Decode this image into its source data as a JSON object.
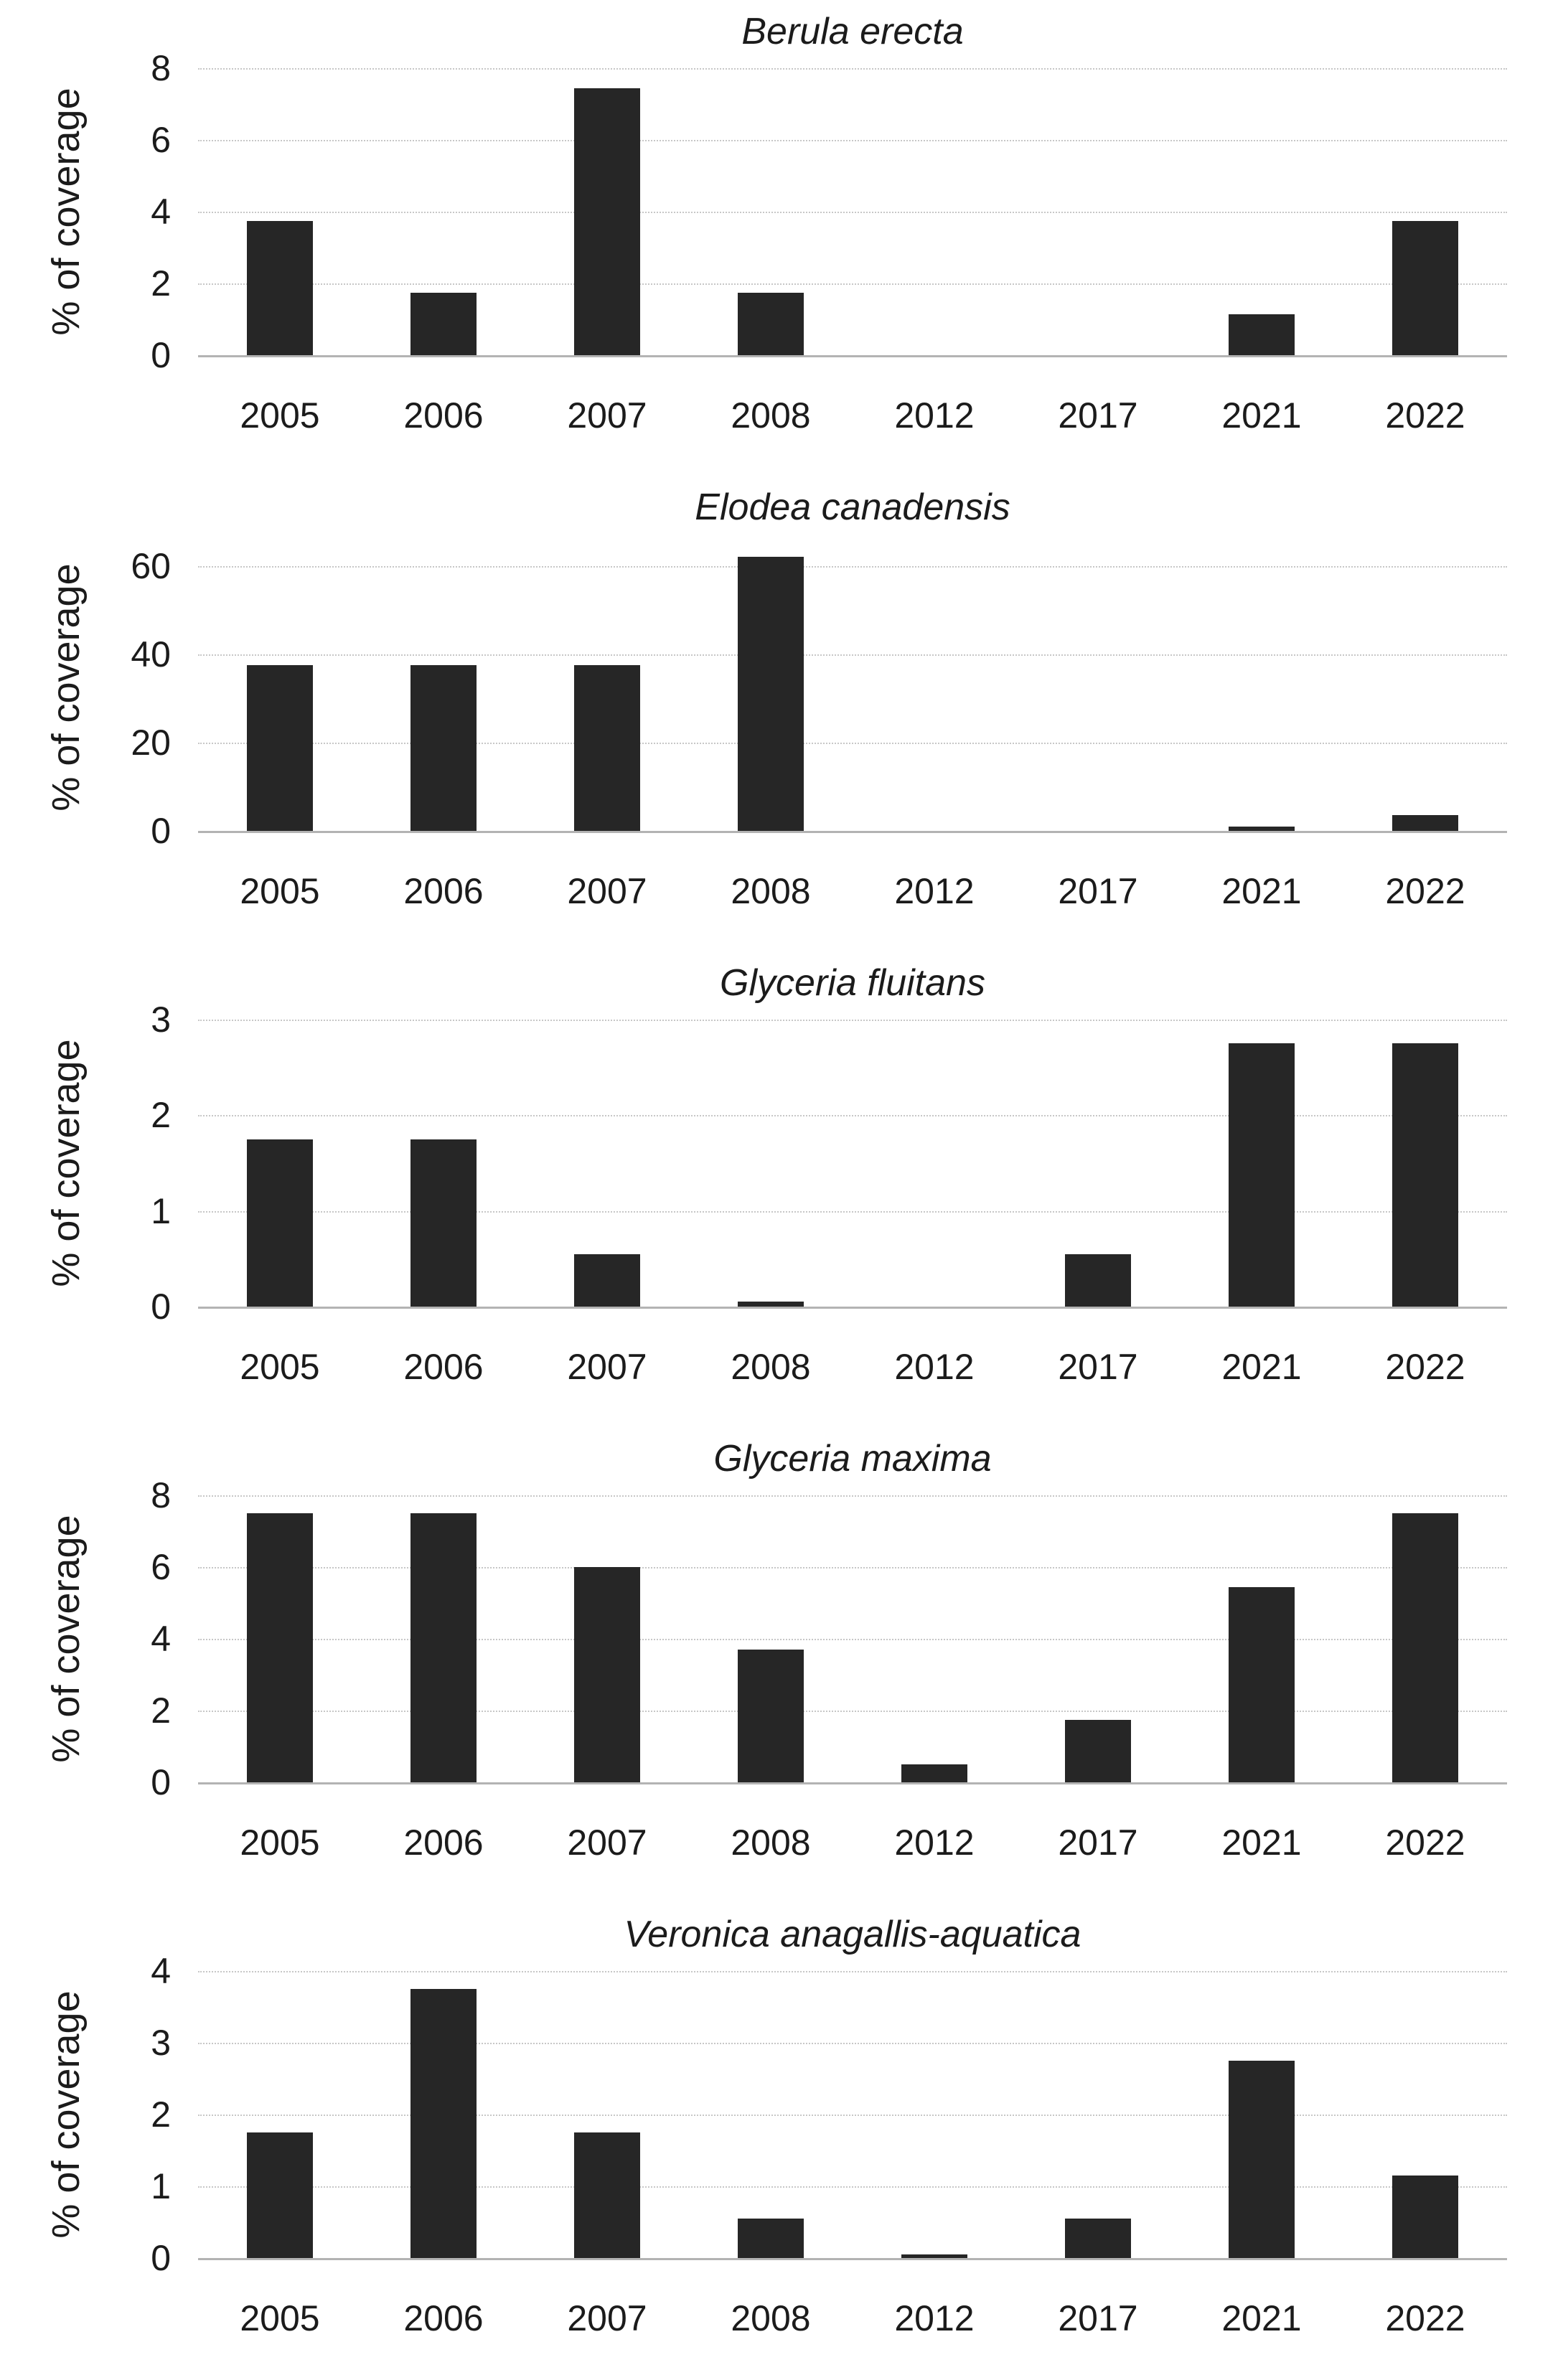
{
  "figure": {
    "ylabel": "% of coverage",
    "years": [
      "2005",
      "2006",
      "2007",
      "2008",
      "2012",
      "2017",
      "2021",
      "2022"
    ]
  },
  "colors": {
    "bar": "#262626",
    "gridline": "#c7c7c7",
    "axis_line": "#b3b3b3",
    "text": "#1b1b1b",
    "background": "#ffffff"
  },
  "chart_data": [
    {
      "type": "bar",
      "title": "Berula erecta",
      "ylabel": "% of coverage",
      "xlabel": "",
      "categories": [
        "2005",
        "2006",
        "2007",
        "2008",
        "2012",
        "2017",
        "2021",
        "2022"
      ],
      "values": [
        3.75,
        1.75,
        7.45,
        1.75,
        0,
        0,
        1.15,
        3.75
      ],
      "ylim": [
        0,
        8
      ],
      "yticks": [
        0,
        2,
        4,
        6,
        8
      ],
      "grid": true,
      "legend": "none"
    },
    {
      "type": "bar",
      "title": "Elodea canadensis",
      "ylabel": "% of coverage",
      "xlabel": "",
      "categories": [
        "2005",
        "2006",
        "2007",
        "2008",
        "2012",
        "2017",
        "2021",
        "2022"
      ],
      "values": [
        37.5,
        37.5,
        37.5,
        62,
        0,
        0,
        1,
        3.5
      ],
      "ylim": [
        0,
        65
      ],
      "yticks": [
        0,
        20,
        40,
        60
      ],
      "grid": true,
      "legend": "none"
    },
    {
      "type": "bar",
      "title": "Glyceria fluitans",
      "ylabel": "% of coverage",
      "xlabel": "",
      "categories": [
        "2005",
        "2006",
        "2007",
        "2008",
        "2012",
        "2017",
        "2021",
        "2022"
      ],
      "values": [
        1.75,
        1.75,
        0.55,
        0.05,
        0,
        0.55,
        2.75,
        2.75
      ],
      "ylim": [
        0,
        3
      ],
      "yticks": [
        0,
        1,
        2,
        3
      ],
      "grid": true,
      "legend": "none"
    },
    {
      "type": "bar",
      "title": "Glyceria maxima",
      "ylabel": "% of coverage",
      "xlabel": "",
      "categories": [
        "2005",
        "2006",
        "2007",
        "2008",
        "2012",
        "2017",
        "2021",
        "2022"
      ],
      "values": [
        7.5,
        7.5,
        6.0,
        3.7,
        0.5,
        1.75,
        5.45,
        7.5
      ],
      "ylim": [
        0,
        8
      ],
      "yticks": [
        0,
        2,
        4,
        6,
        8
      ],
      "grid": true,
      "legend": "none"
    },
    {
      "type": "bar",
      "title": "Veronica anagallis-aquatica",
      "ylabel": "% of coverage",
      "xlabel": "",
      "categories": [
        "2005",
        "2006",
        "2007",
        "2008",
        "2012",
        "2017",
        "2021",
        "2022"
      ],
      "values": [
        1.75,
        3.75,
        1.75,
        0.55,
        0.05,
        0.55,
        2.75,
        1.15
      ],
      "ylim": [
        0,
        4
      ],
      "yticks": [
        0,
        1,
        2,
        3,
        4
      ],
      "grid": true,
      "legend": "none"
    }
  ]
}
